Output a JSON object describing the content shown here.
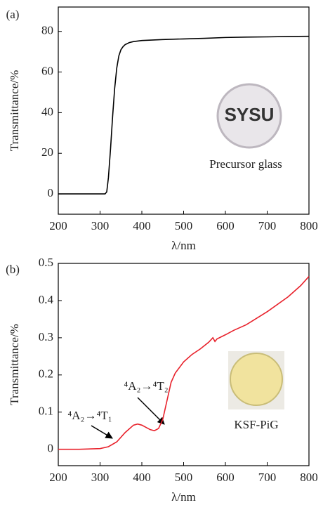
{
  "chart_data": [
    {
      "type": "line",
      "panel_label": "(a)",
      "x_label": "λ/nm",
      "y_label": "Transmittance/%",
      "x": [
        200,
        250,
        300,
        312,
        316,
        320,
        325,
        330,
        335,
        340,
        345,
        350,
        355,
        360,
        370,
        380,
        400,
        450,
        500,
        550,
        600,
        650,
        700,
        750,
        800
      ],
      "values": [
        0,
        0,
        0,
        0,
        1,
        8,
        22,
        38,
        52,
        62,
        68,
        71,
        72.5,
        73.5,
        74.5,
        75,
        75.5,
        76,
        76.3,
        76.6,
        77,
        77.2,
        77.3,
        77.5,
        77.6
      ],
      "color": "#000000",
      "xlim": [
        200,
        800
      ],
      "xticks": [
        200,
        300,
        400,
        500,
        600,
        700,
        800
      ],
      "ylim": [
        -10,
        92
      ],
      "yticks": [
        0,
        20,
        40,
        60,
        80
      ],
      "annotations": [
        "Precursor glass",
        "SYSU"
      ]
    },
    {
      "type": "line",
      "panel_label": "(b)",
      "x_label": "λ/nm",
      "y_label": "Transmittance/%",
      "x": [
        200,
        250,
        300,
        320,
        340,
        360,
        380,
        390,
        400,
        420,
        430,
        440,
        450,
        460,
        470,
        480,
        500,
        520,
        540,
        560,
        570,
        575,
        580,
        600,
        620,
        650,
        700,
        750,
        780,
        800
      ],
      "values": [
        0,
        0,
        0.002,
        0.007,
        0.02,
        0.045,
        0.065,
        0.068,
        0.065,
        0.053,
        0.05,
        0.056,
        0.08,
        0.13,
        0.18,
        0.205,
        0.235,
        0.255,
        0.27,
        0.288,
        0.3,
        0.29,
        0.297,
        0.308,
        0.32,
        0.335,
        0.37,
        0.41,
        0.44,
        0.465
      ],
      "color": "#e8212b",
      "xlim": [
        200,
        800
      ],
      "xticks": [
        200,
        300,
        400,
        500,
        600,
        700,
        800
      ],
      "ylim": [
        -0.044,
        0.5
      ],
      "yticks": [
        0,
        0.1,
        0.2,
        0.3,
        0.4,
        0.5
      ],
      "annotations": [
        "KSF-PiG",
        "⁴A₂→⁴T₂",
        "⁴A₂→⁴T₁"
      ]
    }
  ]
}
